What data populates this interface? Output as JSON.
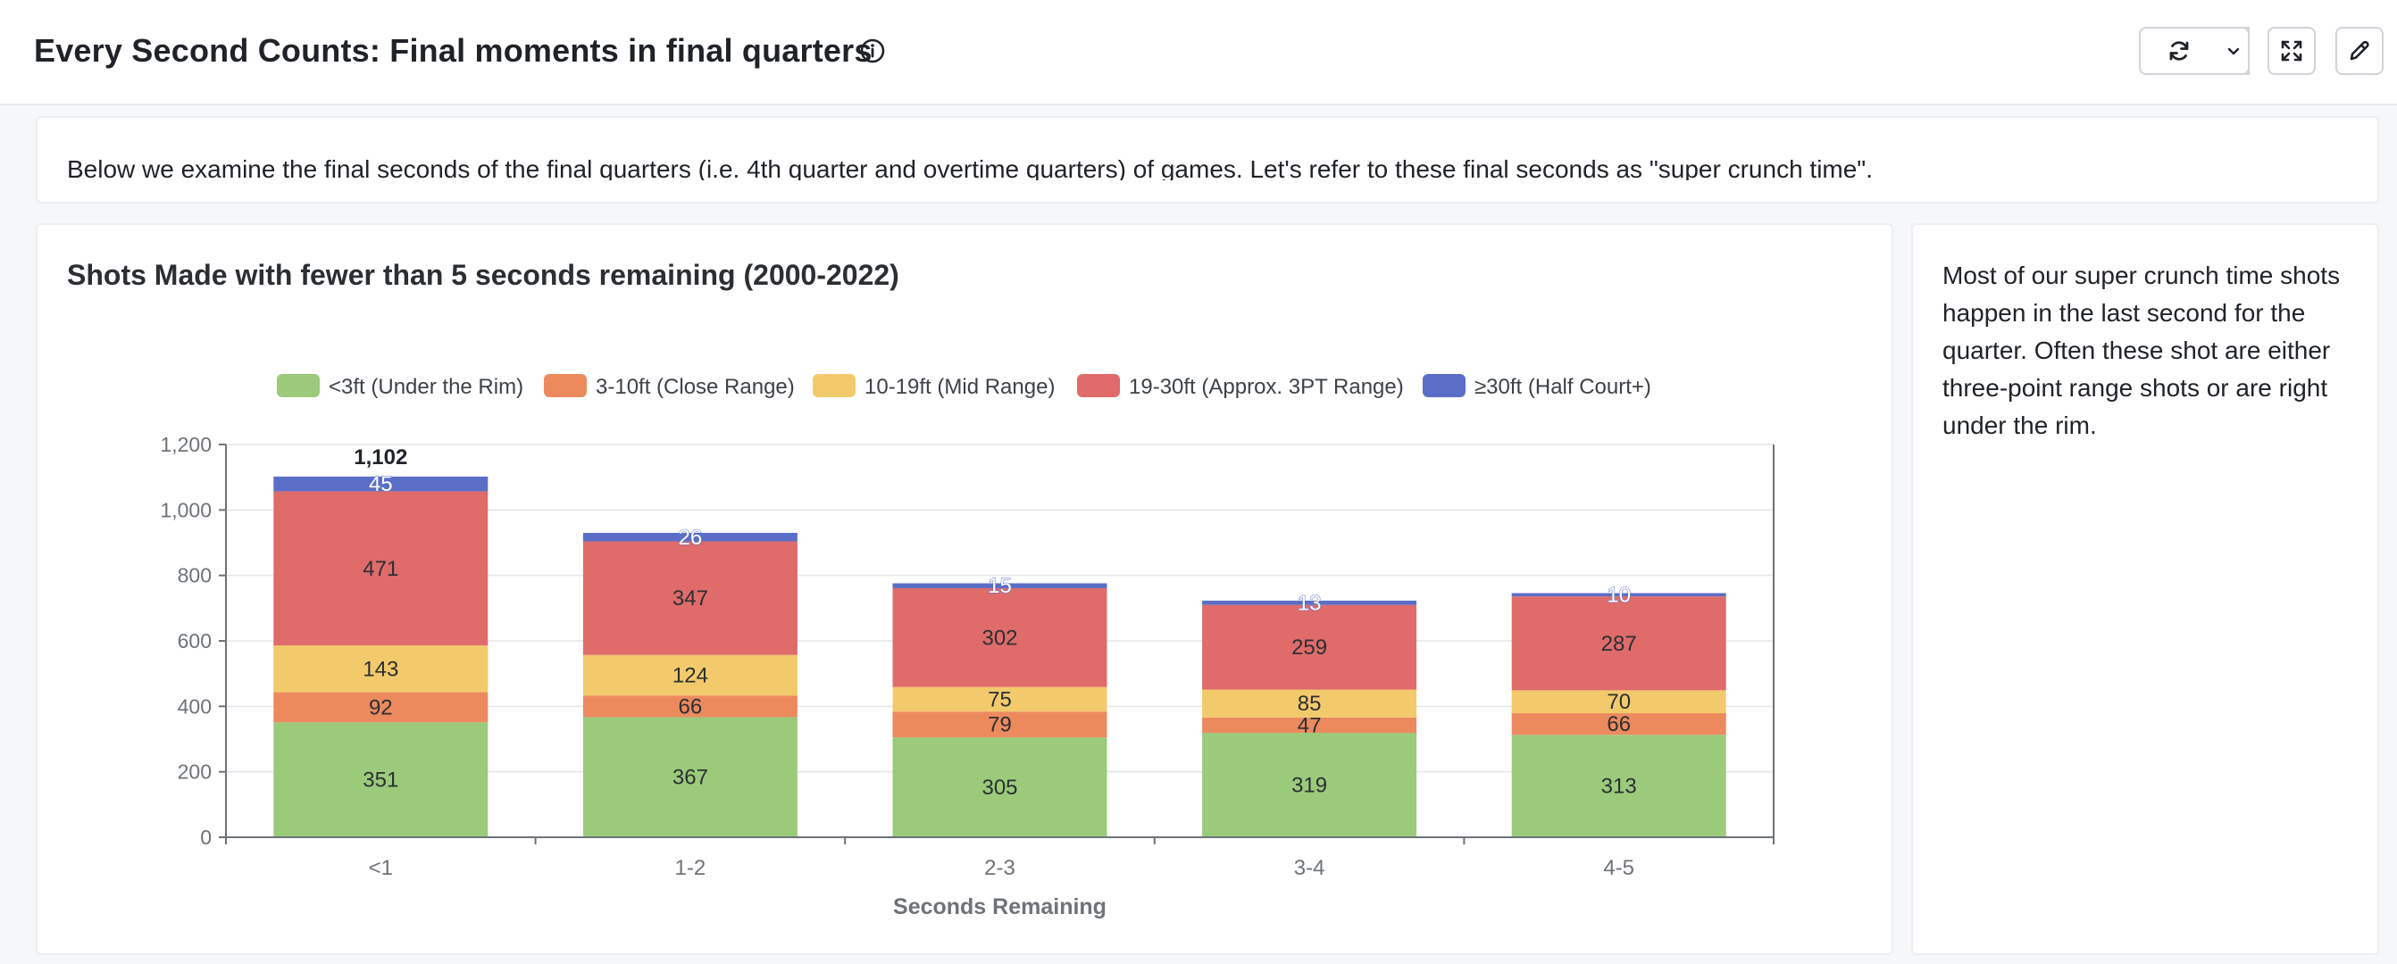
{
  "header": {
    "title": "Every Second Counts: Final moments in final quarters",
    "info_icon": "info-circle-icon",
    "buttons": {
      "refresh_icon": "refresh-icon",
      "dropdown_icon": "chevron-down-icon",
      "fullscreen_icon": "expand-icon",
      "edit_icon": "pencil-icon"
    }
  },
  "intro": {
    "text": "Below we examine the final seconds of the final quarters (i.e. 4th quarter and overtime quarters) of games. Let's refer to these final seconds as \"super crunch time\"."
  },
  "note": {
    "text": "Most of our super crunch time shots happen in the last second for the quarter. Often these shot are either three-point range shots or are right under the rim."
  },
  "chart_data": {
    "type": "bar",
    "stacked": true,
    "title": "Shots Made with fewer than 5 seconds remaining (2000-2022)",
    "xlabel": "Seconds Remaining",
    "ylabel": "",
    "ylim": [
      0,
      1200
    ],
    "yticks": [
      0,
      200,
      400,
      600,
      800,
      1000,
      1200
    ],
    "ytick_labels": [
      "0",
      "200",
      "400",
      "600",
      "800",
      "1,000",
      "1,200"
    ],
    "grid": true,
    "legend_position": "top",
    "categories": [
      "<1",
      "1-2",
      "2-3",
      "3-4",
      "4-5"
    ],
    "series": [
      {
        "name": "<3ft (Under the Rim)",
        "color": "#9bca7b",
        "values": [
          351,
          367,
          305,
          319,
          313
        ]
      },
      {
        "name": "3-10ft (Close Range)",
        "color": "#ec8a5e",
        "values": [
          92,
          66,
          79,
          47,
          66
        ]
      },
      {
        "name": "10-19ft (Mid Range)",
        "color": "#f3ca6b",
        "values": [
          143,
          124,
          75,
          85,
          70
        ]
      },
      {
        "name": "19-30ft (Approx. 3PT Range)",
        "color": "#df6b6a",
        "values": [
          471,
          347,
          302,
          259,
          287
        ]
      },
      {
        "name": "≥30ft (Half Court+)",
        "color": "#5b6ec7",
        "values": [
          45,
          26,
          15,
          13,
          10
        ]
      }
    ],
    "annotations": [
      {
        "category": "<1",
        "text": "1,102"
      }
    ]
  }
}
